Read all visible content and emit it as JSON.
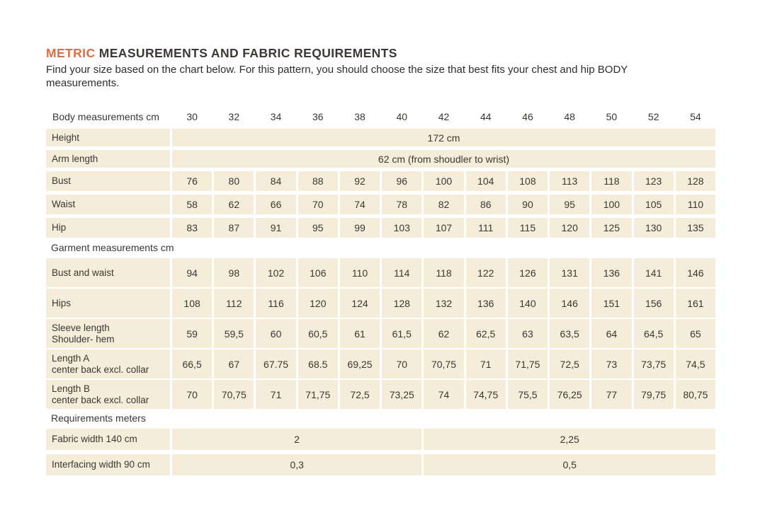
{
  "page": {
    "title_accent": "METRIC",
    "title_rest": " MEASUREMENTS AND FABRIC REQUIREMENTS",
    "subtitle": "Find your size based on the chart below. For this pattern, you should choose the size that best fits your chest and hip BODY measurements."
  },
  "colors": {
    "accent_orange": "#d96f47",
    "cell_background": "#f5edda",
    "text": "#3a3733"
  },
  "table": {
    "header_label": "Body measurements cm",
    "sizes": [
      "30",
      "32",
      "34",
      "36",
      "38",
      "40",
      "42",
      "44",
      "46",
      "48",
      "50",
      "52",
      "54"
    ],
    "sections": [
      {
        "section_label": null,
        "rows": [
          {
            "type": "span",
            "label": "Height",
            "value": "172 cm"
          },
          {
            "type": "span",
            "label": "Arm length",
            "value": "62 cm (from shoudler to wrist)"
          },
          {
            "type": "cells",
            "label": "Bust",
            "values": [
              "76",
              "80",
              "84",
              "88",
              "92",
              "96",
              "100",
              "104",
              "108",
              "113",
              "118",
              "123",
              "128"
            ]
          },
          {
            "type": "cells",
            "label": "Waist",
            "values": [
              "58",
              "62",
              "66",
              "70",
              "74",
              "78",
              "82",
              "86",
              "90",
              "95",
              "100",
              "105",
              "110"
            ]
          },
          {
            "type": "cells",
            "label": "Hip",
            "values": [
              "83",
              "87",
              "91",
              "95",
              "99",
              "103",
              "107",
              "111",
              "115",
              "120",
              "125",
              "130",
              "135"
            ]
          }
        ]
      },
      {
        "section_label": "Garment measurements cm",
        "rows": [
          {
            "type": "cells",
            "tall": true,
            "label": "Bust and waist",
            "label2": null,
            "values": [
              "94",
              "98",
              "102",
              "106",
              "110",
              "114",
              "118",
              "122",
              "126",
              "131",
              "136",
              "141",
              "146"
            ]
          },
          {
            "type": "cells",
            "tall": true,
            "label": "Hips",
            "label2": null,
            "values": [
              "108",
              "112",
              "116",
              "120",
              "124",
              "128",
              "132",
              "136",
              "140",
              "146",
              "151",
              "156",
              "161"
            ]
          },
          {
            "type": "cells",
            "tall": true,
            "label": "Sleeve length",
            "label2": "Shoulder- hem",
            "values": [
              "59",
              "59,5",
              "60",
              "60,5",
              "61",
              "61,5",
              "62",
              "62,5",
              "63",
              "63,5",
              "64",
              "64,5",
              "65"
            ]
          },
          {
            "type": "cells",
            "tall": true,
            "label": "Length A",
            "label2": "center back excl. collar",
            "values": [
              "66,5",
              "67",
              "67.75",
              "68.5",
              "69,25",
              "70",
              "70,75",
              "71",
              "71,75",
              "72,5",
              "73",
              "73,75",
              "74,5"
            ]
          },
          {
            "type": "cells",
            "tall": true,
            "label": "Length B",
            "label2": "center back excl. collar",
            "values": [
              "70",
              "70,75",
              "71",
              "71,75",
              "72,5",
              "73,25",
              "74",
              "74,75",
              "75,5",
              "76,25",
              "77",
              "79,75",
              "80,75"
            ]
          }
        ]
      },
      {
        "section_label": "Requirements meters",
        "rows": [
          {
            "type": "split",
            "label": "Fabric width 140 cm",
            "left": "2",
            "right": "2,25"
          },
          {
            "type": "split",
            "label": "Interfacing width 90 cm",
            "left": "0,3",
            "right": "0,5"
          }
        ]
      }
    ]
  }
}
